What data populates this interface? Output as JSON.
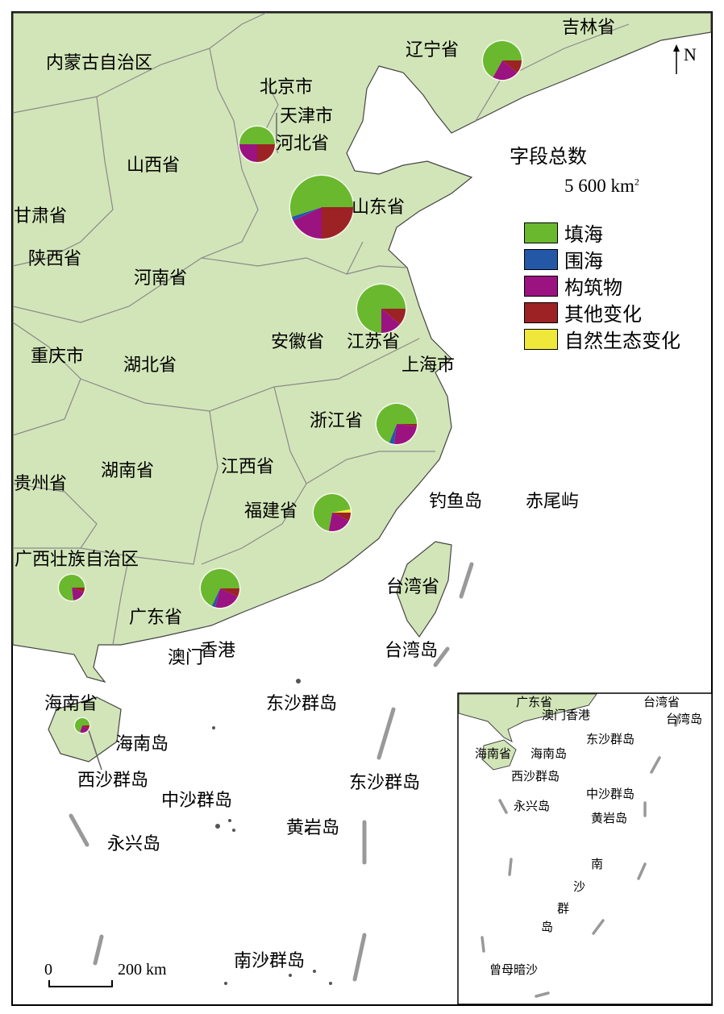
{
  "legend": {
    "title": "字段总数",
    "size_label": "5 600 km",
    "size_sup": "2",
    "items": [
      {
        "label": "填海",
        "color": "#6ab82e"
      },
      {
        "label": "围海",
        "color": "#2458a6"
      },
      {
        "label": "构筑物",
        "color": "#9b1281"
      },
      {
        "label": "其他变化",
        "color": "#9c2224"
      },
      {
        "label": "自然生态变化",
        "color": "#efe83a"
      }
    ]
  },
  "north_label": "N",
  "scale_bar": {
    "start": "0",
    "end": "200 km"
  },
  "labels": {
    "neimenggu": "内蒙古自治区",
    "jilin": "吉林省",
    "liaoning": "辽宁省",
    "beijing": "北京市",
    "tianjin": "天津市",
    "hebei": "河北省",
    "shanxi": "山西省",
    "shandong": "山东省",
    "gansu": "甘肃省",
    "shaanxi": "陕西省",
    "henan": "河南省",
    "anhui": "安徽省",
    "jiangsu": "江苏省",
    "shanghai": "上海市",
    "chongqing": "重庆市",
    "hubei": "湖北省",
    "zhejiang": "浙江省",
    "guizhou": "贵州省",
    "hunan": "湖南省",
    "jiangxi": "江西省",
    "fujian": "福建省",
    "diaoyu": "钓鱼岛",
    "chiwei": "赤尾屿",
    "guangxi": "广西壮族自治区",
    "taiwan_prov": "台湾省",
    "guangdong": "广东省",
    "macau": "澳门",
    "hongkong": "香港",
    "taiwan_island": "台湾岛",
    "hainan_prov": "海南省",
    "dongsha1": "东沙群岛",
    "hainan_island": "海南岛",
    "xisha": "西沙群岛",
    "dongsha2": "东沙群岛",
    "zhongsha": "中沙群岛",
    "huangyan": "黄岩岛",
    "yongxing": "永兴岛",
    "nansha": "南沙群岛"
  },
  "inset_labels": {
    "guangdong": "广东省",
    "macau_hk": "澳门香港",
    "taiwan_prov": "台湾省",
    "taiwan_island": "台湾岛",
    "dongsha": "东沙群岛",
    "hainan_prov": "海南省",
    "hainan_island": "海南岛",
    "xisha": "西沙群岛",
    "yongxing": "永兴岛",
    "zhongsha": "中沙群岛",
    "huangyan": "黄岩岛",
    "nan": "南",
    "sha": "沙",
    "qun": "群",
    "dao": "岛",
    "zengmu": "曾母暗沙"
  },
  "pie_charts": [
    {
      "province": "辽宁省",
      "fractions": {
        "其他变化": 0.11,
        "构筑物": 0.22,
        "围海": 0,
        "填海": 0.67,
        "自然生态变化": 0
      }
    },
    {
      "province": "河北省",
      "fractions": {
        "其他变化": 0.25,
        "构筑物": 0.25,
        "围海": 0,
        "填海": 0.5,
        "自然生态变化": 0
      }
    },
    {
      "province": "山东省",
      "fractions": {
        "其他变化": 0.25,
        "构筑物": 0.18,
        "围海": 0.02,
        "填海": 0.55,
        "自然生态变化": 0
      }
    },
    {
      "province": "江苏省",
      "fractions": {
        "其他变化": 0.11,
        "构筑物": 0.14,
        "围海": 0,
        "填海": 0.75,
        "自然生态变化": 0
      }
    },
    {
      "province": "浙江省",
      "fractions": {
        "其他变化": 0.02,
        "构筑物": 0.25,
        "围海": 0.04,
        "填海": 0.69,
        "自然生态变化": 0
      }
    },
    {
      "province": "福建省",
      "fractions": {
        "其他变化": 0.07,
        "构筑物": 0.21,
        "围海": 0,
        "填海": 0.69,
        "自然生态变化": 0.03
      }
    },
    {
      "province": "广东省",
      "fractions": {
        "其他变化": 0.07,
        "构筑物": 0.22,
        "围海": 0.03,
        "填海": 0.68,
        "自然生态变化": 0
      }
    },
    {
      "province": "广西壮族自治区",
      "fractions": {
        "其他变化": 0.06,
        "构筑物": 0.17,
        "围海": 0,
        "填海": 0.77,
        "自然生态变化": 0
      }
    },
    {
      "province": "海南省",
      "fractions": {
        "其他变化": 0.08,
        "构筑物": 0.22,
        "围海": 0,
        "填海": 0.7,
        "自然生态变化": 0
      }
    }
  ]
}
